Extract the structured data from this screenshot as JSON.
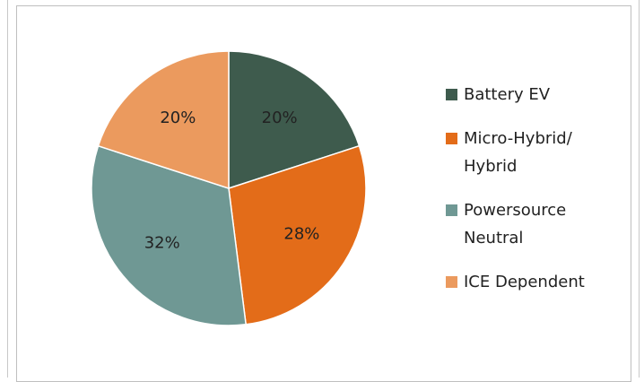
{
  "chart_data": {
    "type": "pie",
    "categories": [
      "Battery EV",
      "Micro-Hybrid/ Hybrid",
      "Powersource Neutral",
      "ICE Dependent"
    ],
    "values": [
      20,
      28,
      32,
      20
    ],
    "value_labels": [
      "20%",
      "28%",
      "32%",
      "20%"
    ],
    "colors": [
      "#3e5b4d",
      "#e36c19",
      "#6f9894",
      "#eb9a5e"
    ],
    "legend": "right"
  }
}
